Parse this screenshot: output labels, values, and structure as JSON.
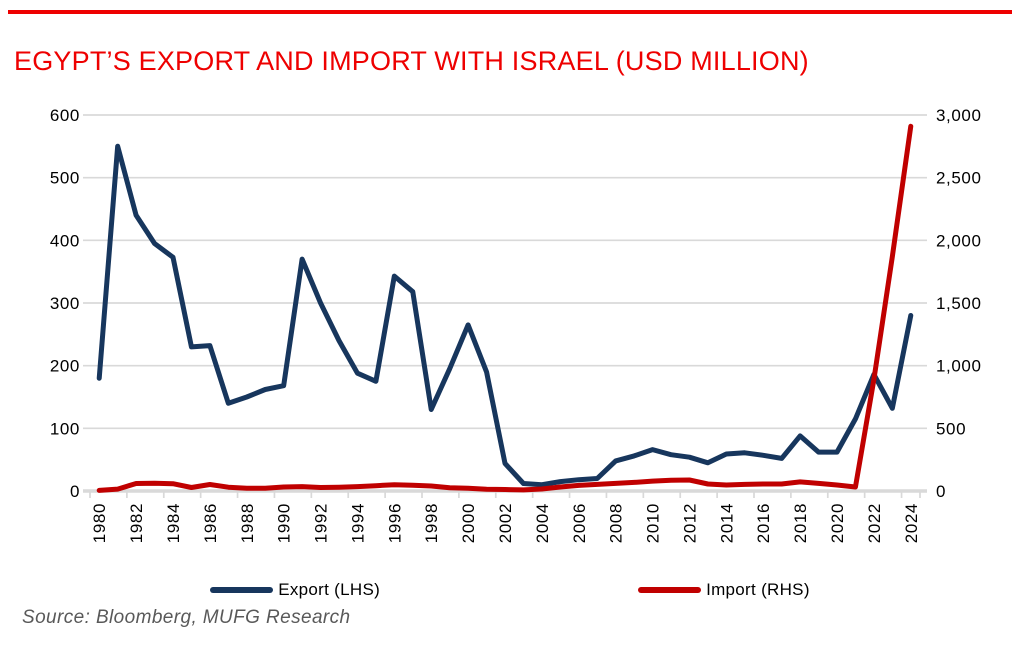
{
  "page": {
    "title": "EGYPT’S EXPORT AND IMPORT WITH ISRAEL (USD MILLION)",
    "source": "Source: Bloomberg, MUFG Research"
  },
  "colors": {
    "title_red": "#ee0000",
    "rule_red": "#ee0000",
    "export_navy": "#17365d",
    "import_red": "#c00000",
    "grid_gray": "#d9d9d9",
    "source_gray": "#595959",
    "axis_text": "#000000"
  },
  "legend": [
    {
      "label": "Export (LHS)",
      "series": "export"
    },
    {
      "label": "Import (RHS)",
      "series": "import"
    }
  ],
  "chart_data": {
    "type": "line",
    "title": "EGYPT’S EXPORT AND IMPORT WITH ISRAEL (USD MILLION)",
    "x": [
      1980,
      1981,
      1982,
      1983,
      1984,
      1985,
      1986,
      1987,
      1988,
      1989,
      1990,
      1991,
      1992,
      1993,
      1994,
      1995,
      1996,
      1997,
      1998,
      1999,
      2000,
      2001,
      2002,
      2003,
      2004,
      2005,
      2006,
      2007,
      2008,
      2009,
      2010,
      2011,
      2012,
      2013,
      2014,
      2015,
      2016,
      2017,
      2018,
      2019,
      2020,
      2021,
      2022,
      2023,
      2024
    ],
    "x_label_interval": 2,
    "series": [
      {
        "name": "Export (LHS)",
        "axis": "left",
        "color": "#17365d",
        "values": [
          180,
          550,
          440,
          395,
          373,
          230,
          232,
          140,
          150,
          162,
          168,
          370,
          300,
          240,
          188,
          175,
          343,
          318,
          130,
          195,
          265,
          190,
          44,
          12,
          10,
          15,
          18,
          20,
          48,
          56,
          66,
          58,
          54,
          45,
          59,
          61,
          57,
          52,
          88,
          62,
          62,
          115,
          186,
          132,
          280
        ]
      },
      {
        "name": "Import (RHS)",
        "axis": "right",
        "color": "#c00000",
        "values": [
          5,
          15,
          60,
          62,
          58,
          28,
          52,
          30,
          22,
          22,
          32,
          35,
          28,
          30,
          35,
          42,
          50,
          46,
          40,
          26,
          22,
          14,
          12,
          9,
          16,
          32,
          45,
          53,
          61,
          69,
          79,
          86,
          88,
          56,
          48,
          53,
          56,
          56,
          73,
          61,
          48,
          32,
          890,
          1870,
          2910
        ]
      }
    ],
    "left_axis": {
      "min": 0,
      "max": 600,
      "step": 100,
      "tick_labels": [
        "0",
        "100",
        "200",
        "300",
        "400",
        "500",
        "600"
      ]
    },
    "right_axis": {
      "min": 0,
      "max": 3000,
      "step": 500,
      "tick_labels": [
        "0",
        "500",
        "1,000",
        "1,500",
        "2,000",
        "2,500",
        "3,000"
      ]
    },
    "grid": true,
    "legend_position": "bottom"
  }
}
